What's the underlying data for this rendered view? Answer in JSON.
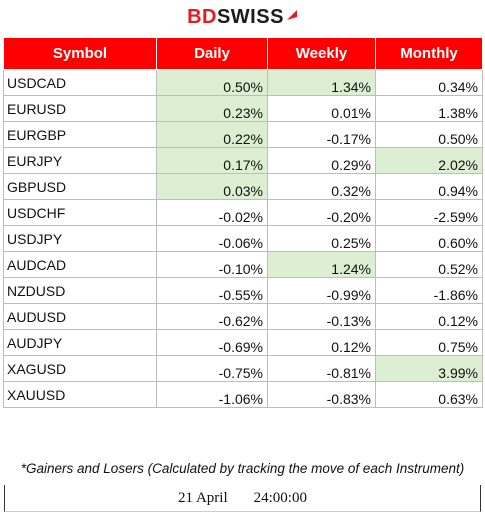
{
  "logo": {
    "part1": "BD",
    "part2": "SWISS"
  },
  "table": {
    "headers": [
      "Symbol",
      "Daily",
      "Weekly",
      "Monthly"
    ],
    "rows": [
      {
        "symbol": "USDCAD",
        "daily": "0.50%",
        "weekly": "1.34%",
        "monthly": "0.34%",
        "highlight": [
          true,
          true,
          false
        ]
      },
      {
        "symbol": "EURUSD",
        "daily": "0.23%",
        "weekly": "0.01%",
        "monthly": "1.38%",
        "highlight": [
          true,
          false,
          false
        ]
      },
      {
        "symbol": "EURGBP",
        "daily": "0.22%",
        "weekly": "-0.17%",
        "monthly": "0.50%",
        "highlight": [
          true,
          false,
          false
        ]
      },
      {
        "symbol": "EURJPY",
        "daily": "0.17%",
        "weekly": "0.29%",
        "monthly": "2.02%",
        "highlight": [
          true,
          false,
          true
        ]
      },
      {
        "symbol": "GBPUSD",
        "daily": "0.03%",
        "weekly": "0.32%",
        "monthly": "0.94%",
        "highlight": [
          true,
          false,
          false
        ]
      },
      {
        "symbol": "USDCHF",
        "daily": "-0.02%",
        "weekly": "-0.20%",
        "monthly": "-2.59%",
        "highlight": [
          false,
          false,
          false
        ]
      },
      {
        "symbol": "USDJPY",
        "daily": "-0.06%",
        "weekly": "0.25%",
        "monthly": "0.60%",
        "highlight": [
          false,
          false,
          false
        ]
      },
      {
        "symbol": "AUDCAD",
        "daily": "-0.10%",
        "weekly": "1.24%",
        "monthly": "0.52%",
        "highlight": [
          false,
          true,
          false
        ]
      },
      {
        "symbol": "NZDUSD",
        "daily": "-0.55%",
        "weekly": "-0.99%",
        "monthly": "-1.86%",
        "highlight": [
          false,
          false,
          false
        ]
      },
      {
        "symbol": "AUDUSD",
        "daily": "-0.62%",
        "weekly": "-0.13%",
        "monthly": "0.12%",
        "highlight": [
          false,
          false,
          false
        ]
      },
      {
        "symbol": "AUDJPY",
        "daily": "-0.69%",
        "weekly": "0.12%",
        "monthly": "0.75%",
        "highlight": [
          false,
          false,
          false
        ]
      },
      {
        "symbol": "XAGUSD",
        "daily": "-0.75%",
        "weekly": "-0.81%",
        "monthly": "3.99%",
        "highlight": [
          false,
          false,
          true
        ]
      },
      {
        "symbol": "XAUUSD",
        "daily": "-1.06%",
        "weekly": "-0.83%",
        "monthly": "0.63%",
        "highlight": [
          false,
          false,
          false
        ]
      }
    ]
  },
  "footnote": "*Gainers and Losers (Calculated by tracking the move of each Instrument)",
  "date": "21 April",
  "time": "24:00:00",
  "colors": {
    "header_bg": "#ff0000",
    "highlight": "#dcefd2",
    "brand_red": "#e31b23"
  }
}
